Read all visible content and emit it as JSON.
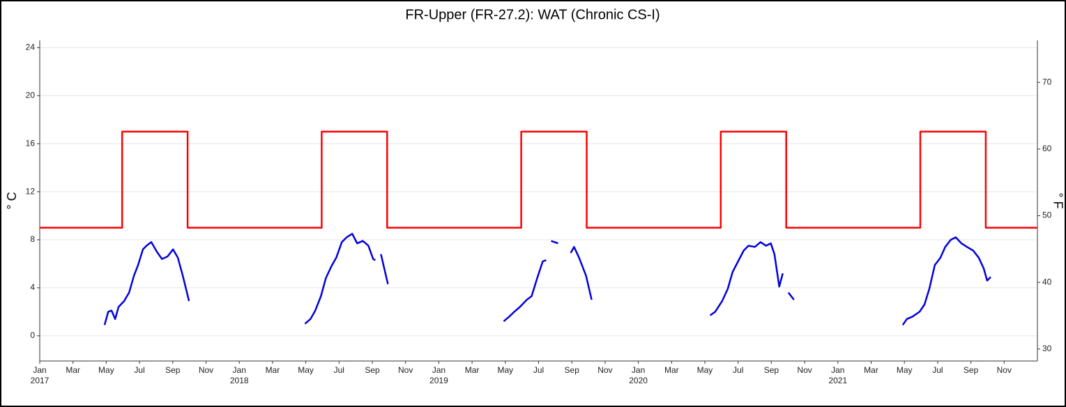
{
  "chart_data": {
    "type": "line",
    "title": "FR-Upper (FR-27.2): WAT (Chronic CS-I)",
    "y_label": "° C",
    "y2_label": "° F",
    "xlim": [
      2017,
      2022
    ],
    "xticks": [
      {
        "value": 2017.0,
        "label": "Jan 2017"
      },
      {
        "value": 2017.1667,
        "label": "Mar"
      },
      {
        "value": 2017.3333,
        "label": "May"
      },
      {
        "value": 2017.5,
        "label": "Jul"
      },
      {
        "value": 2017.6667,
        "label": "Sep"
      },
      {
        "value": 2017.8333,
        "label": "Nov"
      },
      {
        "value": 2018.0,
        "label": "Jan 2018"
      },
      {
        "value": 2018.1667,
        "label": "Mar"
      },
      {
        "value": 2018.3333,
        "label": "May"
      },
      {
        "value": 2018.5,
        "label": "Jul"
      },
      {
        "value": 2018.6667,
        "label": "Sep"
      },
      {
        "value": 2018.8333,
        "label": "Nov"
      },
      {
        "value": 2019.0,
        "label": "Jan 2019"
      },
      {
        "value": 2019.1667,
        "label": "Mar"
      },
      {
        "value": 2019.3333,
        "label": "May"
      },
      {
        "value": 2019.5,
        "label": "Jul"
      },
      {
        "value": 2019.6667,
        "label": "Sep"
      },
      {
        "value": 2019.8333,
        "label": "Nov"
      },
      {
        "value": 2020.0,
        "label": "Jan 2020"
      },
      {
        "value": 2020.1667,
        "label": "Mar"
      },
      {
        "value": 2020.3333,
        "label": "May"
      },
      {
        "value": 2020.5,
        "label": "Jul"
      },
      {
        "value": 2020.6667,
        "label": "Sep"
      },
      {
        "value": 2020.8333,
        "label": "Nov"
      },
      {
        "value": 2021.0,
        "label": "Jan 2021"
      },
      {
        "value": 2021.1667,
        "label": "Mar"
      },
      {
        "value": 2021.3333,
        "label": "May"
      },
      {
        "value": 2021.5,
        "label": "Jul"
      },
      {
        "value": 2021.6667,
        "label": "Sep"
      },
      {
        "value": 2021.8333,
        "label": "Nov"
      }
    ],
    "ylim": [
      -2.1,
      24.6
    ],
    "yticks": [
      0,
      4,
      8,
      12,
      16,
      20,
      24
    ],
    "y2lim": [
      28.2,
      76.3
    ],
    "y2ticks": [
      30,
      40,
      50,
      60,
      70
    ],
    "grid": true,
    "series": [
      {
        "color": "#ff0000",
        "x": [
          2017.0,
          2017.413,
          2017.413,
          2017.741,
          2017.741,
          2018.413,
          2018.413,
          2018.741,
          2018.741,
          2019.413,
          2019.413,
          2019.741,
          2019.741,
          2020.413,
          2020.413,
          2020.741,
          2020.741,
          2021.413,
          2021.413,
          2021.741,
          2021.741,
          2022.0
        ],
        "values": [
          9,
          9,
          17,
          17,
          9,
          9,
          17,
          17,
          9,
          9,
          17,
          17,
          9,
          9,
          17,
          17,
          9,
          9,
          17,
          17,
          9,
          9
        ]
      },
      {
        "color": "#0000dd",
        "x": [
          2017.325,
          2017.343,
          2017.36,
          2017.378,
          2017.395,
          2017.423,
          2017.448,
          2017.472,
          2017.493,
          2017.517,
          2017.535,
          2017.559,
          2017.587,
          2017.612,
          2017.64,
          2017.668,
          2017.692,
          2017.717,
          2017.748,
          null,
          2018.329,
          2018.357,
          2018.381,
          2018.409,
          2018.434,
          2018.462,
          2018.486,
          2018.514,
          2018.538,
          2018.566,
          2018.591,
          2018.619,
          2018.647,
          2018.671,
          2018.682,
          null,
          2018.71,
          2018.731,
          2018.745,
          null,
          2019.325,
          2019.353,
          2019.378,
          2019.406,
          2019.441,
          2019.465,
          2019.493,
          2019.521,
          2019.538,
          null,
          2019.563,
          2019.598,
          null,
          2019.661,
          2019.678,
          2019.703,
          2019.738,
          2019.766,
          null,
          2020.36,
          2020.385,
          2020.42,
          2020.448,
          2020.472,
          2020.5,
          2020.528,
          2020.552,
          2020.584,
          2020.612,
          2020.64,
          2020.664,
          2020.682,
          2020.706,
          2020.724,
          null,
          2020.752,
          2020.78,
          null,
          2021.325,
          2021.346,
          2021.374,
          2021.409,
          2021.434,
          2021.458,
          2021.486,
          2021.514,
          2021.538,
          2021.566,
          2021.591,
          2021.619,
          2021.647,
          2021.678,
          2021.706,
          2021.731,
          2021.748,
          2021.766
        ],
        "values": [
          0.9,
          2.0,
          2.1,
          1.4,
          2.4,
          2.9,
          3.6,
          5.0,
          5.9,
          7.2,
          7.5,
          7.8,
          7.0,
          6.4,
          6.6,
          7.2,
          6.5,
          5.0,
          2.9,
          null,
          1.0,
          1.4,
          2.1,
          3.3,
          4.8,
          5.8,
          6.5,
          7.8,
          8.2,
          8.5,
          7.7,
          7.9,
          7.5,
          6.4,
          6.3,
          null,
          6.8,
          5.3,
          4.3,
          null,
          1.2,
          1.6,
          2.0,
          2.4,
          3.0,
          3.3,
          4.8,
          6.2,
          6.3,
          null,
          7.9,
          7.7,
          null,
          6.9,
          7.4,
          6.5,
          5.0,
          3.0,
          null,
          1.7,
          2.0,
          2.9,
          3.9,
          5.3,
          6.2,
          7.1,
          7.5,
          7.4,
          7.8,
          7.5,
          7.7,
          6.8,
          4.1,
          5.2,
          null,
          3.6,
          3.0,
          null,
          0.9,
          1.4,
          1.6,
          2.0,
          2.6,
          3.9,
          5.9,
          6.5,
          7.4,
          8.0,
          8.2,
          7.7,
          7.4,
          7.1,
          6.5,
          5.6,
          4.6,
          4.9
        ]
      }
    ]
  }
}
